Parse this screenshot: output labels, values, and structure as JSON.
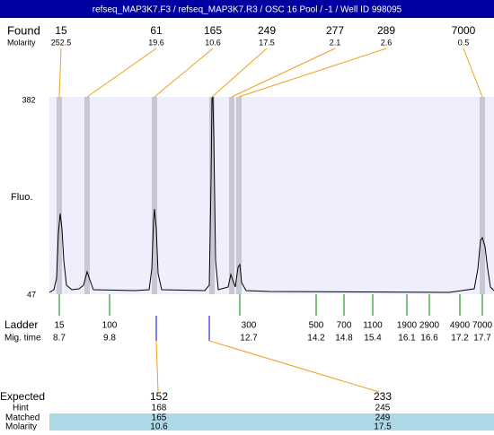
{
  "header": {
    "title": "refseq_MAP3K7.F3 / refseq_MAP3K7.R3 / OSC 16 Pool / -1 / Well ID 998095"
  },
  "found": {
    "label": "Found",
    "sublabel": "Molarity",
    "peaks": [
      {
        "size": "15",
        "molarity": "252.5"
      },
      {
        "size": "61",
        "molarity": "19.6"
      },
      {
        "size": "165",
        "molarity": "10.6"
      },
      {
        "size": "249",
        "molarity": "17.5"
      },
      {
        "size": "277",
        "molarity": "2.1"
      },
      {
        "size": "289",
        "molarity": "2.6"
      },
      {
        "size": "7000",
        "molarity": "0.5"
      }
    ]
  },
  "plot": {
    "ylabel": "Fluo.",
    "ymax": "382",
    "ymin": "47"
  },
  "ladder": {
    "label": "Ladder",
    "sublabel": "Mig. time",
    "bands": [
      {
        "size": "15",
        "time": "8.7"
      },
      {
        "size": "100",
        "time": "9.8"
      },
      {
        "size": "300",
        "time": "12.7"
      },
      {
        "size": "500",
        "time": "14.2"
      },
      {
        "size": "700",
        "time": "14.8"
      },
      {
        "size": "1100",
        "time": "15.4"
      },
      {
        "size": "1900",
        "time": "16.1"
      },
      {
        "size": "2900",
        "time": "16.6"
      },
      {
        "size": "4900",
        "time": "17.2"
      },
      {
        "size": "7000",
        "time": "17.7"
      }
    ]
  },
  "expected": {
    "labels": [
      "Expected",
      "Hint",
      "Matched",
      "Molarity"
    ],
    "items": [
      {
        "expected": "152",
        "hint": "168",
        "matched": "165",
        "molarity": "10.6"
      },
      {
        "expected": "233",
        "hint": "245",
        "matched": "249",
        "molarity": "17.5"
      }
    ]
  }
}
